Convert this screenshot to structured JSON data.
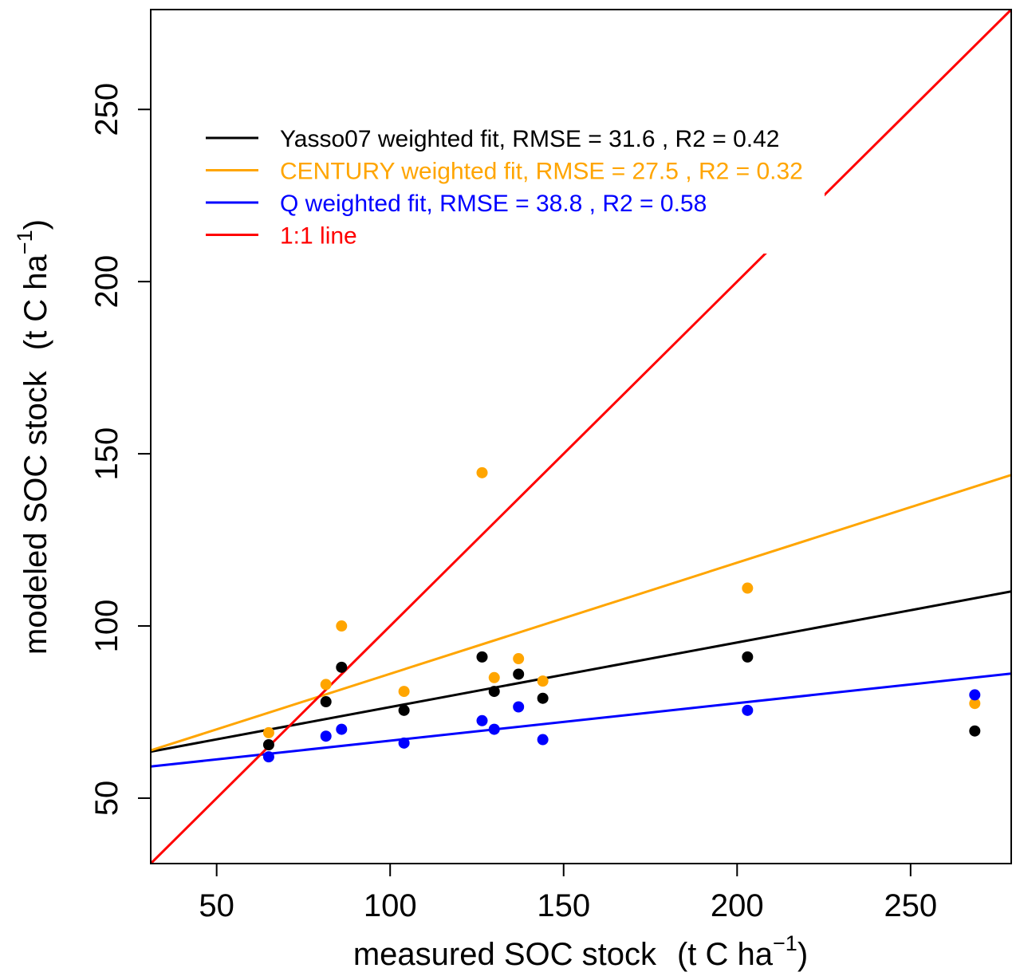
{
  "chart_data": {
    "type": "scatter",
    "xlabel": "measured SOC stock",
    "xlabel_unit_open": "(t  C  ha",
    "xlabel_unit_exp": "−1",
    "xlabel_unit_close": ")",
    "ylabel": "modeled SOC stock",
    "ylabel_unit_open": "(t  C  ha",
    "ylabel_unit_exp": "−1",
    "ylabel_unit_close": ")",
    "xlim": [
      31,
      279
    ],
    "ylim": [
      31,
      279
    ],
    "x_ticks": [
      50,
      100,
      150,
      200,
      250
    ],
    "y_ticks": [
      50,
      100,
      150,
      200,
      250
    ],
    "grid": false,
    "legend_position": "top-left",
    "x": [
      65,
      81.5,
      86,
      104,
      126.5,
      130,
      137,
      144,
      203,
      268.5
    ],
    "series": [
      {
        "name": "Yasso07 weighted fit, RMSE = 31.6 , R2 =  0.42",
        "color": "#000000",
        "values": [
          65.5,
          78,
          88,
          75.5,
          91,
          81,
          86,
          79,
          91,
          69.5
        ],
        "fit": {
          "intercept": 57.7,
          "slope": 0.1875
        }
      },
      {
        "name": "CENTURY weighted fit, RMSE = 27.5 , R2 =  0.32",
        "color": "#FFA500",
        "values": [
          69,
          83,
          100,
          81,
          144.5,
          85,
          90.5,
          84,
          111,
          77.5
        ],
        "fit": {
          "intercept": 53.85,
          "slope": 0.3226
        }
      },
      {
        "name": "Q weighted fit, RMSE = 38.8 , R2 =  0.58",
        "color": "#0000FF",
        "values": [
          62,
          68,
          70,
          66,
          72.5,
          70,
          76.5,
          67,
          75.5,
          80
        ],
        "fit": {
          "intercept": 55.8,
          "slope": 0.1089
        }
      }
    ],
    "reference_line": {
      "name": "1:1 line",
      "color": "#FF0000",
      "intercept": 0,
      "slope": 1
    }
  }
}
